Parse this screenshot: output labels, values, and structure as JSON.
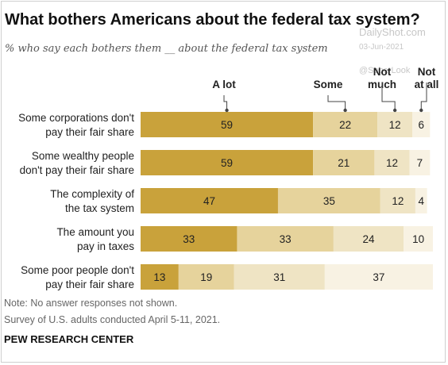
{
  "header": {
    "title": "What bothers Americans about the federal tax system?",
    "subtitle": "% who say each bothers them __ about the federal tax system"
  },
  "watermark": {
    "site": "DailyShot.com",
    "date": "03-Jun-2021",
    "handle": "@SoberLook"
  },
  "chart_data": {
    "type": "bar",
    "orientation": "horizontal",
    "stacked": true,
    "categories": [
      "Some corporations don't pay their fair share",
      "Some wealthy people don't pay their fair share",
      "The complexity of the tax system",
      "The amount you pay in taxes",
      "Some poor people don't pay their fair share"
    ],
    "category_lines": [
      [
        "Some corporations don't",
        "pay their fair share"
      ],
      [
        "Some wealthy people",
        "don't pay their fair share"
      ],
      [
        "The complexity of",
        "the tax system"
      ],
      [
        "The amount you",
        "pay in taxes"
      ],
      [
        "Some poor people don't",
        "pay their fair share"
      ]
    ],
    "series": [
      {
        "name": "A lot",
        "label_lines": [
          "A lot"
        ],
        "color": "#c9a23b",
        "values": [
          59,
          59,
          47,
          33,
          13
        ]
      },
      {
        "name": "Some",
        "label_lines": [
          "Some"
        ],
        "color": "#e6d39c",
        "values": [
          22,
          21,
          35,
          33,
          19
        ]
      },
      {
        "name": "Not much",
        "label_lines": [
          "Not",
          "much"
        ],
        "color": "#efe4c4",
        "values": [
          12,
          12,
          12,
          24,
          31
        ]
      },
      {
        "name": "Not at all",
        "label_lines": [
          "Not",
          "at all"
        ],
        "color": "#f8f2e3",
        "values": [
          6,
          7,
          4,
          10,
          37
        ]
      }
    ],
    "xlim": [
      0,
      100
    ],
    "grid": false,
    "legend": "top, labels with leader lines"
  },
  "footer": {
    "note": "Note: No answer responses not shown.",
    "source": "Survey of U.S. adults conducted April 5-11, 2021.",
    "brand": "PEW RESEARCH CENTER"
  }
}
